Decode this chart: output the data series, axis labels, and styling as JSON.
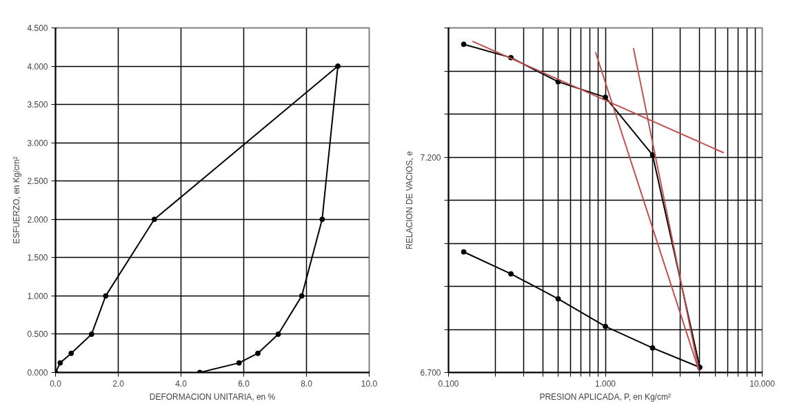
{
  "chart_data": [
    {
      "type": "line",
      "xlabel": "DEFORMACION UNITARIA, en %",
      "ylabel": "ESFUERZO, en Kg/cm²",
      "xlim": [
        0,
        10
      ],
      "ylim": [
        0,
        4.5
      ],
      "xticks": [
        {
          "value": 0,
          "label": "0.0"
        },
        {
          "value": 2,
          "label": "2.0"
        },
        {
          "value": 4,
          "label": "4.0"
        },
        {
          "value": 6,
          "label": "6.0"
        },
        {
          "value": 8,
          "label": "8.0"
        },
        {
          "value": 10,
          "label": "10.0"
        }
      ],
      "yticks": [
        {
          "value": 0,
          "label": "0.000"
        },
        {
          "value": 0.5,
          "label": "0.500"
        },
        {
          "value": 1,
          "label": "1.000"
        },
        {
          "value": 1.5,
          "label": "1.500"
        },
        {
          "value": 2,
          "label": "2.000"
        },
        {
          "value": 2.5,
          "label": "2.500"
        },
        {
          "value": 3,
          "label": "3.000"
        },
        {
          "value": 3.5,
          "label": "3.500"
        },
        {
          "value": 4,
          "label": "4.000"
        },
        {
          "value": 4.5,
          "label": "4.500"
        }
      ],
      "grid": true,
      "marker": "circle",
      "series": [
        {
          "color": "#000000",
          "x": [
            0,
            0.15,
            0.5,
            1.15,
            1.6,
            3.15,
            9.0,
            8.5,
            7.85,
            7.1,
            6.45,
            5.85,
            4.6
          ],
          "values": [
            0,
            0.125,
            0.25,
            0.5,
            1.0,
            2.0,
            4.0,
            2.0,
            1.0,
            0.5,
            0.25,
            0.125,
            0
          ]
        }
      ]
    },
    {
      "type": "line",
      "log": "x",
      "xlabel": "PRESION APLICADA, P, en Kg/cm²",
      "ylabel": "RELACION DE VACIOS, e",
      "xlim": [
        0.1,
        10
      ],
      "ylim": [
        6.7,
        7.5
      ],
      "xticks": [
        {
          "value": 0.1,
          "label": "0.100"
        },
        {
          "value": 0.2,
          "label": null
        },
        {
          "value": 0.3,
          "label": null
        },
        {
          "value": 0.4,
          "label": null
        },
        {
          "value": 0.5,
          "label": null
        },
        {
          "value": 0.6,
          "label": null
        },
        {
          "value": 0.7,
          "label": null
        },
        {
          "value": 0.8,
          "label": null
        },
        {
          "value": 0.9,
          "label": null
        },
        {
          "value": 1,
          "label": "1.000"
        },
        {
          "value": 2,
          "label": null
        },
        {
          "value": 3,
          "label": null
        },
        {
          "value": 4,
          "label": null
        },
        {
          "value": 5,
          "label": null
        },
        {
          "value": 6,
          "label": null
        },
        {
          "value": 7,
          "label": null
        },
        {
          "value": 8,
          "label": null
        },
        {
          "value": 9,
          "label": null
        },
        {
          "value": 10,
          "label": "10.000"
        }
      ],
      "yticks": [
        {
          "value": 6.7,
          "label": "6.700"
        },
        {
          "value": 6.8,
          "label": null
        },
        {
          "value": 6.9,
          "label": null
        },
        {
          "value": 7.0,
          "label": null
        },
        {
          "value": 7.1,
          "label": null
        },
        {
          "value": 7.2,
          "label": "7.200"
        },
        {
          "value": 7.3,
          "label": null
        },
        {
          "value": 7.4,
          "label": null
        },
        {
          "value": 7.5,
          "label": null
        }
      ],
      "grid": true,
      "marker": "circle",
      "series": [
        {
          "color": "#000000",
          "x": [
            0.125,
            0.25,
            0.5,
            1,
            2,
            4,
            2,
            1,
            0.5,
            0.25,
            0.125
          ],
          "values": [
            7.462,
            7.431,
            7.375,
            7.339,
            7.205,
            6.712,
            6.757,
            6.807,
            6.871,
            6.929,
            6.98
          ]
        },
        {
          "color": "#c0504d",
          "marker": "none",
          "x": [
            0.142,
            5.69
          ],
          "values": [
            7.469,
            7.21
          ]
        },
        {
          "color": "#c0504d",
          "marker": "none",
          "x": [
            0.865,
            3.95
          ],
          "values": [
            7.444,
            6.704
          ]
        },
        {
          "color": "#c0504d",
          "marker": "none",
          "x": [
            1.51,
            3.95
          ],
          "values": [
            7.453,
            6.704
          ]
        }
      ]
    }
  ]
}
